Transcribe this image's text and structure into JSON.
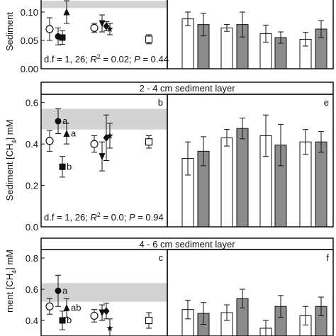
{
  "chart_data": [
    {
      "type": "scatter",
      "ylim": [
        0,
        0.12
      ],
      "yticks": [
        {
          "value": 0,
          "label": "0.00"
        },
        {
          "value": 0.05,
          "label": "0.05"
        },
        {
          "value": 0.1,
          "label": "0.10"
        }
      ],
      "y_label": [
        {
          "text": "Sediment"
        }
      ],
      "band": [
        0.107,
        0.12
      ],
      "band_color": "#d3d3d3",
      "values": [
        0.07,
        0.057,
        0.055,
        0.1,
        0.072,
        0.08,
        0.075,
        0.07,
        0.052
      ],
      "errors": [
        0.02,
        0.015,
        0.012,
        0.02,
        0.008,
        0.015,
        0.008,
        0.01,
        0.008
      ],
      "markers": [
        "open-circle",
        "filled-circle",
        "filled-square",
        "filled-triangle",
        "open-circle",
        "filled-triangle-down",
        "filled-diamond",
        "star",
        "open-square"
      ],
      "stats": [
        {
          "text": "d.f = 1, 26; "
        },
        {
          "text": "R",
          "italic": true
        },
        {
          "text": "2",
          "sup": true
        },
        {
          "text": " = 0.02; "
        },
        {
          "text": "P",
          "italic": true
        },
        {
          "text": " = 0.44"
        }
      ]
    },
    {
      "type": "bar",
      "ylim": [
        0,
        0.12
      ],
      "series": [
        {
          "color": "#ffffff",
          "values": [
            0.088,
            0.072,
            0.062,
            0.052
          ],
          "errors": [
            0.012,
            0.006,
            0.015,
            0.012
          ]
        },
        {
          "color": "#8c8c8c",
          "values": [
            0.078,
            0.078,
            0.055,
            0.07
          ],
          "errors": [
            0.02,
            0.022,
            0.01,
            0.015
          ]
        }
      ]
    },
    {
      "type": "scatter",
      "title": "2 - 4 cm sediment layer",
      "panel_label": "b",
      "ylim": [
        0,
        0.64
      ],
      "yticks": [
        {
          "value": 0,
          "label": "0.0"
        },
        0.2,
        0.4,
        0.6
      ],
      "y_label": [
        {
          "text": "Sediment [CH"
        },
        {
          "text": "4",
          "sub": true
        },
        {
          "text": "] mM"
        }
      ],
      "band": [
        0.47,
        0.57
      ],
      "band_color": "#d3d3d3",
      "values": [
        0.415,
        0.51,
        0.29,
        0.45,
        0.4,
        0.34,
        0.43,
        0.44,
        0.41
      ],
      "errors": [
        0.05,
        0.06,
        0.05,
        0.05,
        0.04,
        0.07,
        0.11,
        0.06,
        0.03
      ],
      "point_labels": [
        null,
        "a",
        "b",
        "a",
        null,
        null,
        null,
        null,
        null
      ],
      "markers": [
        "open-circle",
        "filled-circle",
        "filled-square",
        "filled-triangle",
        "open-circle",
        "filled-triangle-down",
        "filled-diamond",
        "star",
        "open-square"
      ],
      "stats": [
        {
          "text": "d.f = 1, 26; "
        },
        {
          "text": "R",
          "italic": true
        },
        {
          "text": "2",
          "sup": true
        },
        {
          "text": " = 0.0; "
        },
        {
          "text": "P",
          "italic": true
        },
        {
          "text": " = 0.94"
        }
      ]
    },
    {
      "type": "bar",
      "panel_label": "e",
      "ylim": [
        0,
        0.64
      ],
      "series": [
        {
          "color": "#ffffff",
          "values": [
            0.33,
            0.43,
            0.44,
            0.41
          ],
          "errors": [
            0.08,
            0.04,
            0.1,
            0.06
          ]
        },
        {
          "color": "#8c8c8c",
          "values": [
            0.365,
            0.475,
            0.395,
            0.41
          ],
          "errors": [
            0.07,
            0.05,
            0.1,
            0.05
          ]
        }
      ]
    },
    {
      "type": "scatter",
      "title": "4 - 6 cm sediment layer",
      "panel_label": "c",
      "ylim": [
        0.3,
        0.855
      ],
      "yticks": [
        0.4,
        0.6,
        0.8
      ],
      "y_label": [
        {
          "text": "ment [CH"
        },
        {
          "text": "4",
          "sub": true
        },
        {
          "text": "] mM"
        }
      ],
      "band": [
        0.52,
        0.64
      ],
      "band_color": "#d3d3d3",
      "values": [
        0.49,
        0.59,
        0.4,
        0.48,
        0.43,
        0.45,
        0.46,
        0.35,
        0.4
      ],
      "errors": [
        0.05,
        0.1,
        0.06,
        0.06,
        0.04,
        0.05,
        0.05,
        0.06,
        0.05
      ],
      "point_labels": [
        null,
        "a",
        "b",
        "ab",
        null,
        null,
        null,
        null,
        null
      ],
      "markers": [
        "open-circle",
        "filled-circle",
        "filled-square",
        "filled-triangle",
        "open-circle",
        "filled-triangle-down",
        "filled-diamond",
        "star",
        "open-square"
      ]
    },
    {
      "type": "bar",
      "panel_label": "f",
      "ylim": [
        0.3,
        0.855
      ],
      "series": [
        {
          "color": "#ffffff",
          "values": [
            0.47,
            0.45,
            0.35,
            0.43
          ],
          "errors": [
            0.06,
            0.05,
            0.05,
            0.06
          ]
        },
        {
          "color": "#8c8c8c",
          "values": [
            0.445,
            0.54,
            0.49,
            0.49
          ],
          "errors": [
            0.07,
            0.06,
            0.07,
            0.06
          ]
        }
      ]
    }
  ]
}
